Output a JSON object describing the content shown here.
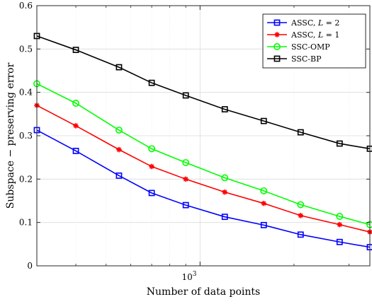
{
  "chart_data": {
    "type": "line",
    "title": "",
    "xlabel": "Number of data points",
    "ylabel": "Subspace − preserving error",
    "x_scale": "log",
    "x": [
      300,
      400,
      550,
      700,
      900,
      1200,
      1600,
      2100,
      2800,
      3500
    ],
    "xlim": [
      300,
      3500
    ],
    "ylim": [
      0,
      0.6
    ],
    "yticks": [
      0,
      0.1,
      0.2,
      0.3,
      0.4,
      0.5,
      0.6
    ],
    "ytick_labels": [
      "0",
      "0.1",
      "0.2",
      "0.3",
      "0.4",
      "0.5",
      "0.6"
    ],
    "xticks": [
      1000
    ],
    "xtick_labels": [
      "10"
    ],
    "xtick_label_exponent": "3",
    "grid": true,
    "legend_position": "top-right",
    "series": [
      {
        "name": "ASSC, L = 2",
        "legend_parts": [
          "ASSC, ",
          "L",
          " = 2"
        ],
        "color": "#0000ff",
        "marker": "square",
        "values": [
          0.313,
          0.265,
          0.208,
          0.168,
          0.14,
          0.113,
          0.094,
          0.072,
          0.055,
          0.043
        ]
      },
      {
        "name": "ASSC, L = 1",
        "legend_parts": [
          "ASSC, ",
          "L",
          " = 1"
        ],
        "color": "#ff0000",
        "marker": "star",
        "values": [
          0.37,
          0.323,
          0.268,
          0.229,
          0.2,
          0.17,
          0.144,
          0.116,
          0.095,
          0.078
        ]
      },
      {
        "name": "SSC-OMP",
        "color": "#00ff00",
        "marker": "circle",
        "values": [
          0.42,
          0.375,
          0.313,
          0.27,
          0.238,
          0.203,
          0.173,
          0.141,
          0.114,
          0.095
        ]
      },
      {
        "name": "SSC-BP",
        "color": "#000000",
        "marker": "square",
        "values": [
          0.53,
          0.498,
          0.458,
          0.422,
          0.393,
          0.361,
          0.334,
          0.308,
          0.282,
          0.27
        ]
      }
    ]
  }
}
